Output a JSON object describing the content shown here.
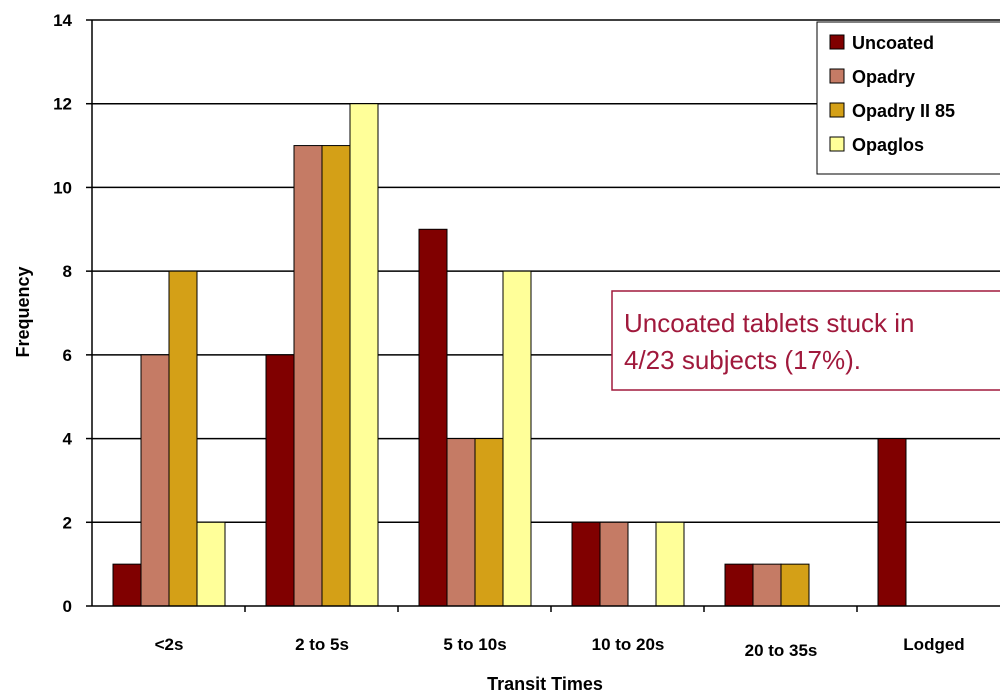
{
  "chart_data": {
    "type": "bar",
    "title": "",
    "xlabel": "Transit Times",
    "ylabel": "Frequency",
    "ylim": [
      0,
      14
    ],
    "yticks": [
      0,
      2,
      4,
      6,
      8,
      10,
      12,
      14
    ],
    "grid": true,
    "legend_position": "top-right",
    "categories": [
      "<2s",
      "2 to 5s",
      "5 to 10s",
      "10 to 20s",
      "20 to 35s",
      "Lodged"
    ],
    "series": [
      {
        "name": "Uncoated",
        "color": "#800000",
        "values": [
          1,
          6,
          9,
          2,
          1,
          4
        ]
      },
      {
        "name": "Opadry",
        "color": "#c57b65",
        "values": [
          6,
          11,
          4,
          2,
          1,
          0
        ]
      },
      {
        "name": "Opadry II 85",
        "color": "#d4a017",
        "values": [
          8,
          11,
          4,
          0,
          1,
          0
        ]
      },
      {
        "name": "Opaglos",
        "color": "#ffff99",
        "values": [
          2,
          12,
          8,
          2,
          0,
          0
        ]
      }
    ],
    "annotation": {
      "lines": [
        "Uncoated tablets stuck in",
        "4/23 subjects (17%)."
      ],
      "text_color": "#a0193c",
      "border_color": "#a0193c"
    }
  }
}
